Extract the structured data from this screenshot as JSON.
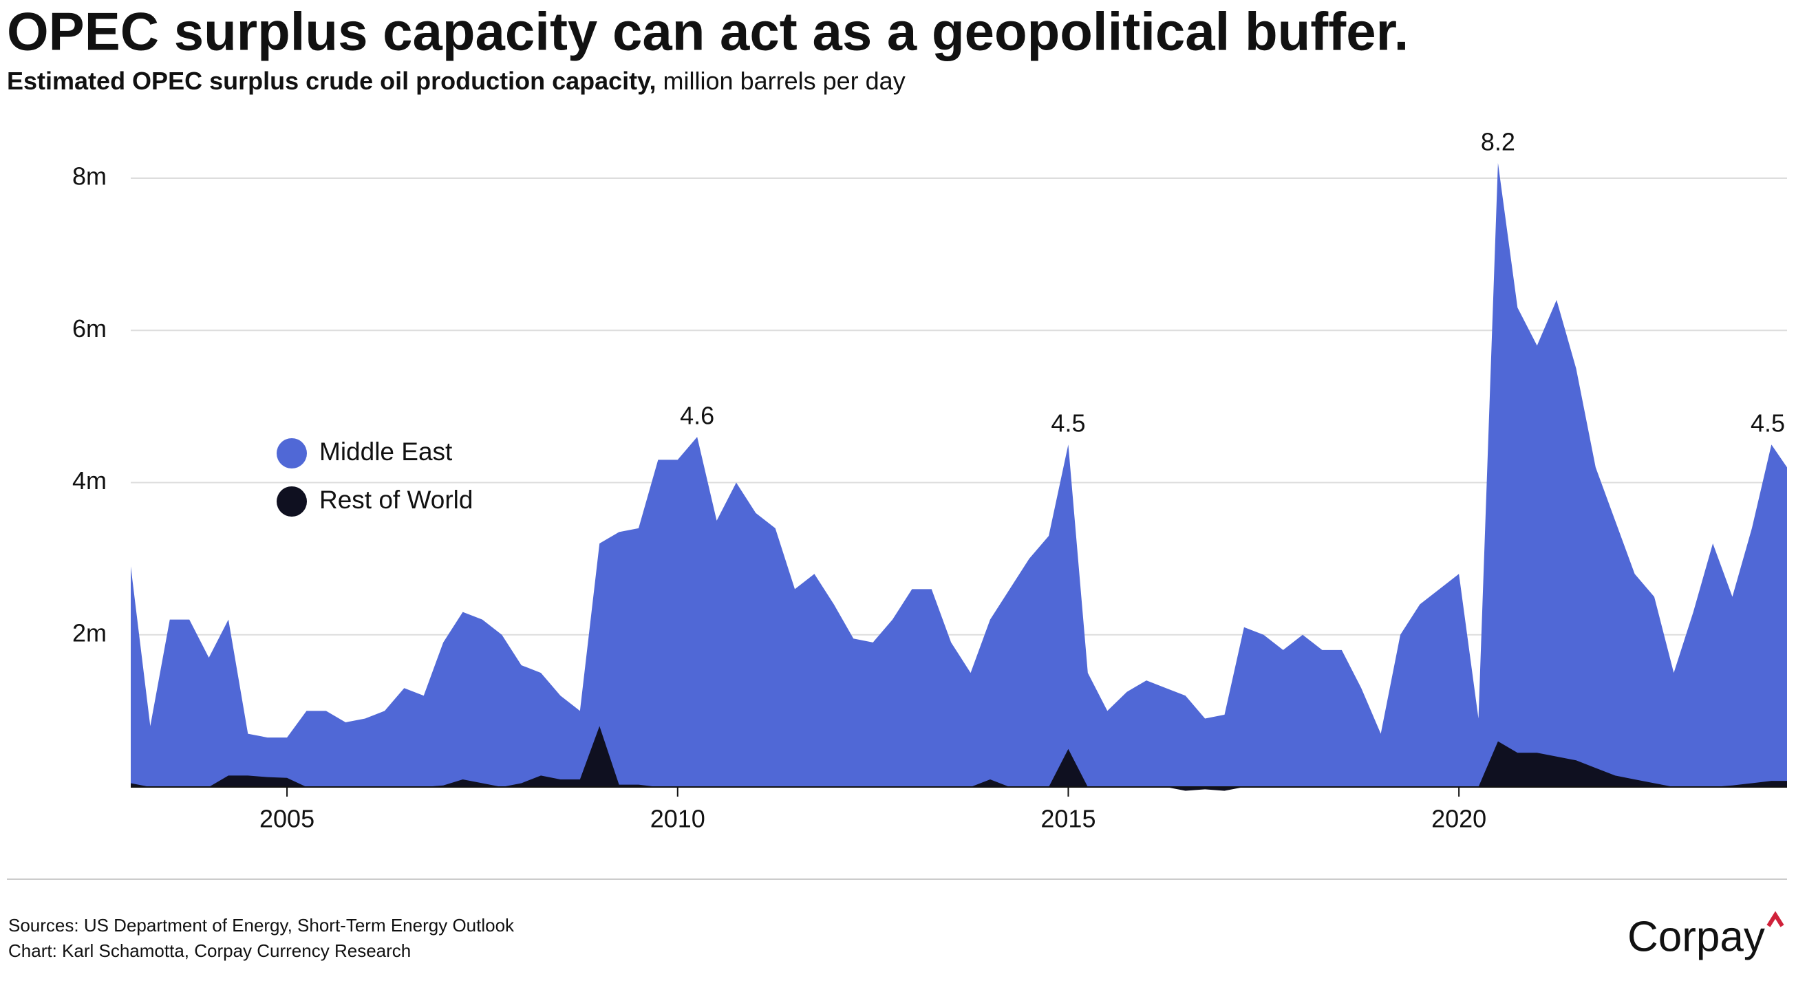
{
  "chart_data": {
    "type": "area",
    "title": "OPEC surplus capacity can act as a geopolitical buffer.",
    "subtitle": "Estimated OPEC surplus crude oil production capacity,",
    "subtitle_units": "million barrels per day",
    "x": [
      2003.0,
      2003.25,
      2003.5,
      2003.75,
      2004.0,
      2004.25,
      2004.5,
      2004.75,
      2005.0,
      2005.25,
      2005.5,
      2005.75,
      2006.0,
      2006.25,
      2006.5,
      2006.75,
      2007.0,
      2007.25,
      2007.5,
      2007.75,
      2008.0,
      2008.25,
      2008.5,
      2008.75,
      2009.0,
      2009.25,
      2009.5,
      2009.75,
      2010.0,
      2010.25,
      2010.5,
      2010.75,
      2011.0,
      2011.25,
      2011.5,
      2011.75,
      2012.0,
      2012.25,
      2012.5,
      2012.75,
      2013.0,
      2013.25,
      2013.5,
      2013.75,
      2014.0,
      2014.25,
      2014.5,
      2014.75,
      2015.0,
      2015.25,
      2015.5,
      2015.75,
      2016.0,
      2016.25,
      2016.5,
      2016.75,
      2017.0,
      2017.25,
      2017.5,
      2017.75,
      2018.0,
      2018.25,
      2018.5,
      2018.75,
      2019.0,
      2019.25,
      2019.5,
      2019.75,
      2020.0,
      2020.25,
      2020.5,
      2020.75,
      2021.0,
      2021.25,
      2021.5,
      2021.75,
      2022.0,
      2022.25,
      2022.5,
      2022.75,
      2023.0,
      2023.25,
      2023.5,
      2023.75,
      2024.0,
      2024.2
    ],
    "series": [
      {
        "name": "Middle East",
        "color": "#5068d6",
        "values": [
          2.9,
          0.8,
          2.2,
          2.2,
          1.7,
          2.2,
          0.7,
          0.65,
          0.65,
          1.0,
          1.0,
          0.85,
          0.9,
          1.0,
          1.3,
          1.2,
          1.9,
          2.3,
          2.2,
          2.0,
          1.6,
          1.5,
          1.2,
          1.0,
          3.2,
          3.35,
          3.4,
          4.3,
          4.3,
          4.6,
          3.5,
          4.0,
          3.6,
          3.4,
          2.6,
          2.8,
          2.4,
          1.95,
          1.9,
          2.2,
          2.6,
          2.6,
          1.9,
          1.5,
          2.2,
          2.6,
          3.0,
          3.3,
          4.5,
          1.5,
          1.0,
          1.25,
          1.4,
          1.3,
          1.2,
          0.9,
          0.95,
          2.1,
          2.0,
          1.8,
          2.0,
          1.8,
          1.8,
          1.3,
          0.7,
          2.0,
          2.4,
          2.6,
          2.8,
          0.9,
          8.2,
          6.3,
          5.8,
          6.4,
          5.5,
          4.2,
          3.5,
          2.8,
          2.5,
          1.5,
          2.3,
          3.2,
          2.5,
          3.4,
          4.5,
          4.2
        ]
      },
      {
        "name": "Rest of World",
        "color": "#0f1020",
        "values": [
          0.05,
          0,
          0,
          0,
          0,
          0.15,
          0.15,
          0.13,
          0.12,
          0,
          0,
          0,
          0,
          0,
          0,
          0,
          0.02,
          0.1,
          0.05,
          0,
          0.05,
          0.15,
          0.1,
          0.1,
          0.8,
          0.03,
          0.03,
          0,
          0,
          0,
          0,
          0,
          0,
          0,
          0,
          0,
          0,
          0,
          0,
          0,
          0,
          0,
          0,
          0,
          0.1,
          0,
          0,
          0,
          0.5,
          0,
          0,
          0,
          0,
          0,
          -0.05,
          -0.03,
          -0.05,
          0,
          0,
          0,
          0,
          0,
          0,
          0,
          0,
          0,
          0,
          0,
          0,
          0,
          0.6,
          0.45,
          0.45,
          0.4,
          0.35,
          0.25,
          0.15,
          0.1,
          0.05,
          0,
          0,
          0,
          0.02,
          0.05,
          0.08,
          0.08
        ]
      }
    ],
    "annotations": [
      {
        "x": 2010.25,
        "value": 4.6
      },
      {
        "x": 2015.0,
        "value": 4.5
      },
      {
        "x": 2020.5,
        "value": 8.2
      },
      {
        "x": 2024.0,
        "value": 4.5
      }
    ],
    "xlim": [
      2003,
      2024.2
    ],
    "xticks": [
      2005,
      2010,
      2015,
      2020
    ],
    "ylim": [
      0,
      8
    ],
    "yticks": [
      {
        "value": 2,
        "label": "2m"
      },
      {
        "value": 4,
        "label": "4m"
      },
      {
        "value": 6,
        "label": "6m"
      },
      {
        "value": 8,
        "label": "8m"
      }
    ],
    "grid": true,
    "legend": "left",
    "sources": "Sources: US Department of Energy, Short-Term Energy Outlook",
    "credit": "Chart: Karl Schamotta, Corpay Currency Research",
    "brand": "Corpay"
  }
}
